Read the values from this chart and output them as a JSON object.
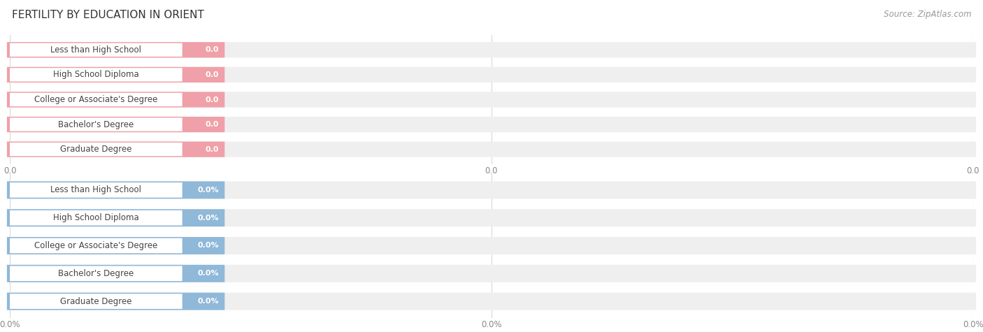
{
  "title": "FERTILITY BY EDUCATION IN ORIENT",
  "source": "Source: ZipAtlas.com",
  "categories": [
    "Less than High School",
    "High School Diploma",
    "College or Associate's Degree",
    "Bachelor's Degree",
    "Graduate Degree"
  ],
  "values_top": [
    0.0,
    0.0,
    0.0,
    0.0,
    0.0
  ],
  "values_bottom": [
    0.0,
    0.0,
    0.0,
    0.0,
    0.0
  ],
  "bar_color_top": "#f0a0a8",
  "bar_color_bottom": "#90b8d8",
  "bar_bg_color": "#efefef",
  "label_bg_color": "#ffffff",
  "bg_color": "#ffffff",
  "title_fontsize": 11,
  "label_fontsize": 8.5,
  "value_fontsize": 8,
  "tick_fontsize": 8.5,
  "source_fontsize": 8.5,
  "gridline_color": "#d8d8d8",
  "tick_color": "#888888",
  "text_color": "#444444",
  "title_color": "#333333"
}
